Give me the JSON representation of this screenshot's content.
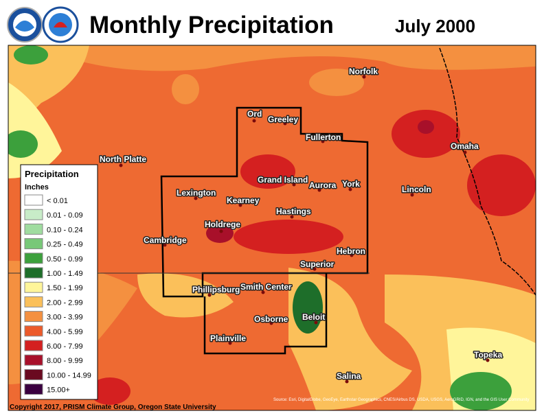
{
  "header": {
    "title": "Monthly Precipitation",
    "date": "July 2000"
  },
  "legend": {
    "title": "Precipitation",
    "units": "Inches",
    "items": [
      {
        "label": "< 0.01",
        "color": "#ffffff"
      },
      {
        "label": "0.01 - 0.09",
        "color": "#c8ecc8"
      },
      {
        "label": "0.10 - 0.24",
        "color": "#a0dca0"
      },
      {
        "label": "0.25 - 0.49",
        "color": "#78c878"
      },
      {
        "label": "0.50 - 0.99",
        "color": "#3ca03c"
      },
      {
        "label": "1.00 - 1.49",
        "color": "#1e6e2a"
      },
      {
        "label": "1.50 - 1.99",
        "color": "#fff59a"
      },
      {
        "label": "2.00 - 2.99",
        "color": "#fbc05a"
      },
      {
        "label": "3.00 - 3.99",
        "color": "#f49040"
      },
      {
        "label": "4.00 - 5.99",
        "color": "#ec5a2a"
      },
      {
        "label": "6.00 - 7.99",
        "color": "#d42020"
      },
      {
        "label": "8.00 - 9.99",
        "color": "#a8102a"
      },
      {
        "label": "10.00 - 14.99",
        "color": "#6a0a20"
      },
      {
        "label": "15.00+",
        "color": "#3a0040"
      }
    ]
  },
  "cities": [
    "North Platte",
    "Ord",
    "Greeley",
    "Fullerton",
    "Norfolk",
    "Omaha",
    "Grand Island",
    "Aurora",
    "York",
    "Lincoln",
    "Lexington",
    "Kearney",
    "Hastings",
    "Holdrege",
    "Cambridge",
    "Hebron",
    "Superior",
    "Phillipsburg",
    "Smith Center",
    "Beloit",
    "Osborne",
    "Plainville",
    "Salina",
    "Topeka"
  ],
  "footer": {
    "copyright": "Copyright 2017, PRISM Climate Group, Oregon State University",
    "source": "Source: Esri, DigitalGlobe, GeoEye, Earthstar Geographics, CNES/Airbus DS, USDA, USGS, AeroGRID, IGN, and the GIS User Community"
  }
}
